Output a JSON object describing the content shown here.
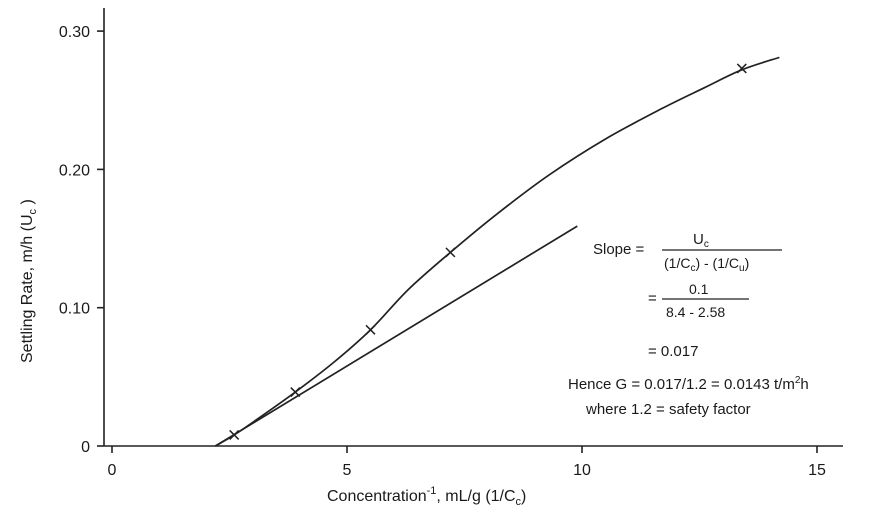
{
  "chart_data": {
    "type": "line",
    "title": "",
    "xlabel": "Concentration",
    "xlabel_sup": "-1",
    "xlabel_tail": ", mL/g (1/C",
    "xlabel_sub": "c",
    "xlabel_close": ")",
    "ylabel": "Settling Rate, m/h (U",
    "ylabel_sub": "c",
    "ylabel_close": " )",
    "xlim": [
      -0.2,
      15.5
    ],
    "ylim": [
      0,
      0.31
    ],
    "x_ticks": [
      {
        "value": 0,
        "label": "0"
      },
      {
        "value": 5,
        "label": "5"
      },
      {
        "value": 10,
        "label": "10"
      },
      {
        "value": 15,
        "label": "15"
      }
    ],
    "y_ticks": [
      {
        "value": 0,
        "label": "0"
      },
      {
        "value": 0.1,
        "label": "0.10"
      },
      {
        "value": 0.2,
        "label": "0.20"
      },
      {
        "value": 0.3,
        "label": "0.30"
      }
    ],
    "series": [
      {
        "marker": "x",
        "x": [
          2.6,
          3.9,
          5.5,
          7.2,
          13.4
        ],
        "y": [
          0.008,
          0.039,
          0.084,
          0.14,
          0.273
        ],
        "curve_x": [
          2.2,
          2.6,
          3.2,
          3.9,
          4.7,
          5.5,
          6.3,
          7.2,
          8.2,
          9.3,
          10.5,
          11.7,
          12.6,
          13.4,
          14.2
        ],
        "curve_y": [
          0.0,
          0.008,
          0.022,
          0.039,
          0.06,
          0.084,
          0.113,
          0.14,
          0.168,
          0.196,
          0.222,
          0.244,
          0.259,
          0.272,
          0.281
        ]
      }
    ],
    "tangent_line": {
      "x": [
        2.2,
        9.9
      ],
      "y": [
        0.0,
        0.159
      ]
    },
    "annotations": {
      "slope_label": "Slope =",
      "frac1_num_main": "U",
      "frac1_num_sub": "c",
      "frac1_den_a": "(1/C",
      "frac1_den_a_sub": "c",
      "frac1_den_mid": ") - (1/C",
      "frac1_den_b_sub": "u",
      "frac1_den_close": ")",
      "eq2": "=",
      "frac2_num": "0.1",
      "frac2_den": "8.4 - 2.58",
      "eq3": "= 0.017",
      "line4": "Hence G = 0.017/1.2 = 0.0143 t/m",
      "line4_sup": "2",
      "line4_tail": "h",
      "line5": "where 1.2 = safety factor"
    }
  }
}
